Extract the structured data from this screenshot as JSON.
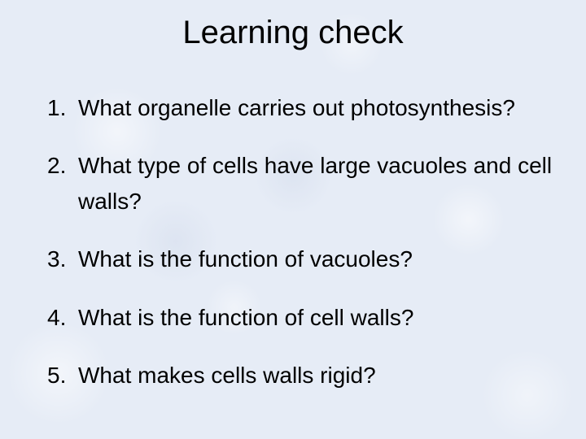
{
  "slide": {
    "title": "Learning check",
    "title_fontsize": 40,
    "body_fontsize": 28,
    "text_color": "#000000",
    "background_color": "#e6ecf6",
    "items": [
      {
        "number": "1.",
        "text": "What organelle carries out photosynthesis?"
      },
      {
        "number": "2.",
        "text": "What type of cells have large vacuoles and cell walls?"
      },
      {
        "number": "3.",
        "text": "What is the function of vacuoles?"
      },
      {
        "number": "4.",
        "text": "What is the function of cell walls?"
      },
      {
        "number": "5.",
        "text": "What makes cells walls rigid?"
      }
    ]
  }
}
